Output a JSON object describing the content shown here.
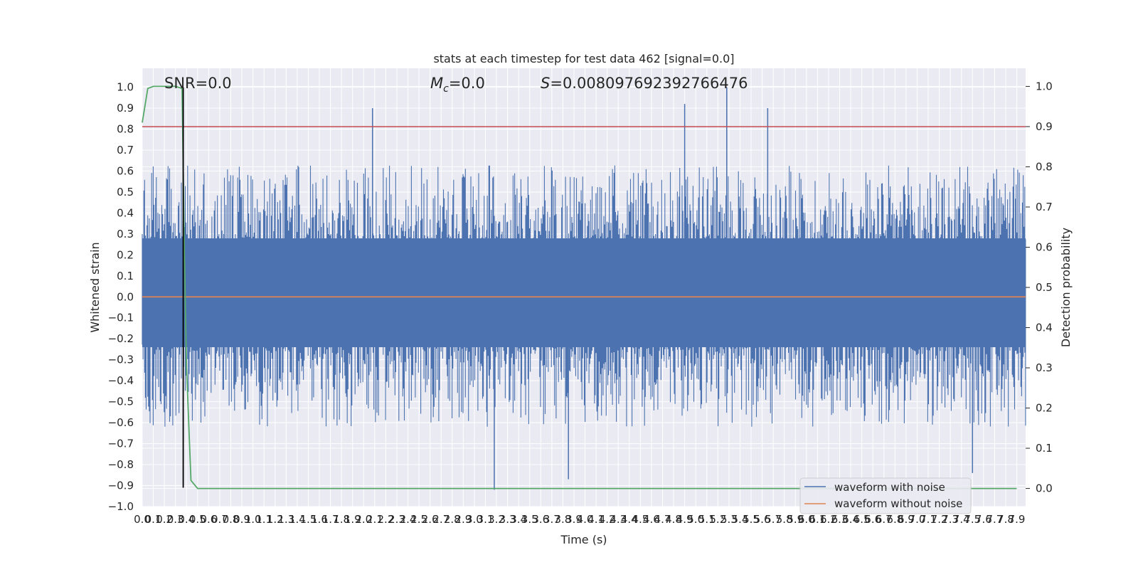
{
  "chart_data": {
    "type": "line",
    "title": "stats at each timestep for test data 462 [signal=0.0]",
    "xlabel": "Time (s)",
    "ylabel": "Whitened strain",
    "y2label": "Detection probability",
    "xlim": [
      0.0,
      7.98
    ],
    "ylim": [
      -1.0,
      1.09
    ],
    "y2lim": [
      -0.045,
      1.045
    ],
    "xticks": [
      "0.0",
      "0.1",
      "0.2",
      "0.3",
      "0.4",
      "0.5",
      "0.6",
      "0.7",
      "0.8",
      "0.9",
      "1.0",
      "1.1",
      "1.2",
      "1.3",
      "1.4",
      "1.5",
      "1.6",
      "1.7",
      "1.8",
      "1.9",
      "2.0",
      "2.1",
      "2.2",
      "2.3",
      "2.4",
      "2.5",
      "2.6",
      "2.7",
      "2.8",
      "2.9",
      "3.0",
      "3.1",
      "3.2",
      "3.3",
      "3.4",
      "3.5",
      "3.6",
      "3.7",
      "3.8",
      "3.9",
      "4.0",
      "4.1",
      "4.2",
      "4.3",
      "4.4",
      "4.5",
      "4.6",
      "4.7",
      "4.8",
      "4.9",
      "5.0",
      "5.1",
      "5.2",
      "5.3",
      "5.4",
      "5.5",
      "5.6",
      "5.7",
      "5.8",
      "5.9",
      "6.0",
      "6.1",
      "6.2",
      "6.3",
      "6.4",
      "6.5",
      "6.6",
      "6.7",
      "6.8",
      "6.9",
      "7.0",
      "7.1",
      "7.2",
      "7.3",
      "7.4",
      "7.5",
      "7.6",
      "7.7",
      "7.8",
      "7.9"
    ],
    "yticks": [
      "1.0",
      "0.9",
      "0.8",
      "0.7",
      "0.6",
      "0.5",
      "0.4",
      "0.3",
      "0.2",
      "0.1",
      "0.0",
      "−0.1",
      "−0.2",
      "−0.3",
      "−0.4",
      "−0.5",
      "−0.6",
      "−0.7",
      "−0.8",
      "−0.9",
      "−1.0"
    ],
    "y2ticks": [
      "1.0",
      "0.9",
      "0.8",
      "0.7",
      "0.6",
      "0.5",
      "0.4",
      "0.3",
      "0.2",
      "0.1",
      "0.0"
    ],
    "grid": true,
    "legend_position": "lower-right",
    "annotations": {
      "snr_text": "SNR=0.0",
      "mc_symbol": "M",
      "mc_subscript": "c",
      "mc_value": "=0.0",
      "s_symbol": "S",
      "s_value": "=0.008097692392766476"
    },
    "series": [
      {
        "name": "waveform with noise",
        "axis": "left",
        "color": "#4c72b0",
        "style": "dense noise",
        "envelope_typical": [
          -0.4,
          0.45
        ],
        "peaks": [
          {
            "x": 2.08,
            "y": 0.9
          },
          {
            "x": 4.9,
            "y": 0.92
          },
          {
            "x": 5.28,
            "y": 1.0
          },
          {
            "x": 5.65,
            "y": 0.9
          },
          {
            "x": 3.18,
            "y": -0.92
          },
          {
            "x": 3.85,
            "y": -0.87
          },
          {
            "x": 7.5,
            "y": -0.84
          }
        ]
      },
      {
        "name": "waveform without noise",
        "axis": "left",
        "color": "#dd8452",
        "x": [
          0.0,
          7.98
        ],
        "y": [
          0.0,
          0.0
        ]
      },
      {
        "name": "",
        "axis": "right",
        "color": "#55a868",
        "x": [
          0.0,
          0.05,
          0.1,
          0.15,
          0.2,
          0.25,
          0.3,
          0.36,
          0.38,
          0.4,
          0.44,
          0.5,
          7.9
        ],
        "y": [
          0.91,
          0.995,
          1.0,
          1.0,
          1.0,
          1.0,
          1.0,
          0.995,
          0.6,
          0.3,
          0.02,
          0.0,
          0.0
        ]
      },
      {
        "name": "",
        "axis": "right",
        "color": "#c44e52",
        "x": [
          0.0,
          7.98
        ],
        "y": [
          0.9,
          0.9
        ]
      }
    ],
    "vline": {
      "x": 0.37,
      "ymin": -0.91,
      "ymax": 1.0,
      "color": "#000000"
    }
  }
}
